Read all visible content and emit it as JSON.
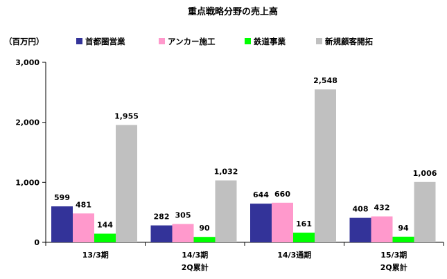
{
  "chart_data": {
    "type": "bar",
    "title": "重点戦略分野の売上高",
    "unit_label": "（百万円）",
    "categories": [
      [
        "13/3期"
      ],
      [
        "14/3期",
        "2Q累計"
      ],
      [
        "14/3通期"
      ],
      [
        "15/3期",
        "2Q累計"
      ]
    ],
    "series": [
      {
        "name": "首都圏営業",
        "color": "#333399",
        "values": [
          599,
          282,
          644,
          408
        ]
      },
      {
        "name": "アンカー施工",
        "color": "#ff99cc",
        "values": [
          481,
          305,
          660,
          432
        ]
      },
      {
        "name": "鉄道事業",
        "color": "#00ff00",
        "values": [
          144,
          90,
          161,
          94
        ]
      },
      {
        "name": "新規顧客開拓",
        "color": "#c0c0c0",
        "values": [
          1955,
          1032,
          2548,
          1006
        ]
      }
    ],
    "data_labels": [
      [
        "599",
        "282",
        "644",
        "408"
      ],
      [
        "481",
        "305",
        "660",
        "432"
      ],
      [
        "144",
        "90",
        "161",
        "94"
      ],
      [
        "1,955",
        "1,032",
        "2,548",
        "1,006"
      ]
    ],
    "ylim": [
      0,
      3000
    ],
    "y_ticks": [
      0,
      1000,
      2000,
      3000
    ],
    "y_tick_labels": [
      "0",
      "1,000",
      "2,000",
      "3,000"
    ],
    "grid": false,
    "legend_position": "top"
  }
}
